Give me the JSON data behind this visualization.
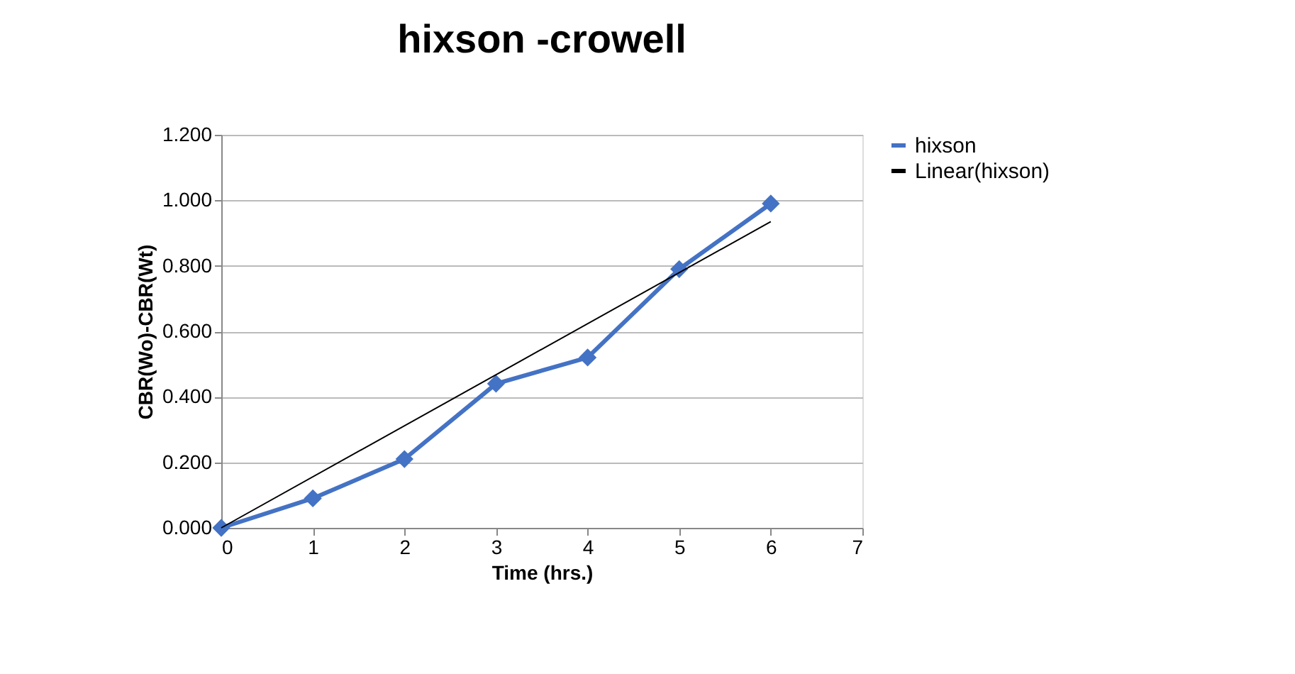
{
  "chart_data": {
    "type": "line",
    "title": "hixson -crowell",
    "xlabel": "Time (hrs.)",
    "ylabel": "CBR(Wo)-CBR(Wt)",
    "x": [
      0,
      1,
      2,
      3,
      4,
      5,
      6
    ],
    "series": [
      {
        "name": "hixson",
        "color": "#4472c4",
        "values": [
          0.0,
          0.09,
          0.21,
          0.44,
          0.52,
          0.79,
          0.99
        ],
        "marker": "diamond"
      },
      {
        "name": "Linear(hixson)",
        "color": "#000000",
        "type": "line",
        "x": [
          0,
          6
        ],
        "values": [
          0.0,
          0.935
        ],
        "marker": "none"
      }
    ],
    "xlim": [
      0,
      7
    ],
    "xticks": [
      0,
      1,
      2,
      3,
      4,
      5,
      6,
      7
    ],
    "ylim": [
      0,
      1.2
    ],
    "yticks": [
      {
        "value": 0,
        "label": "0.000"
      },
      {
        "value": 0.2,
        "label": "0.200"
      },
      {
        "value": 0.4,
        "label": "0.400"
      },
      {
        "value": 0.6,
        "label": "0.600"
      },
      {
        "value": 0.8,
        "label": "0.800"
      },
      {
        "value": 1.0,
        "label": "1.000"
      },
      {
        "value": 1.2,
        "label": "1.200"
      }
    ],
    "grid": "y",
    "legend": "right",
    "line_style": "solid"
  }
}
